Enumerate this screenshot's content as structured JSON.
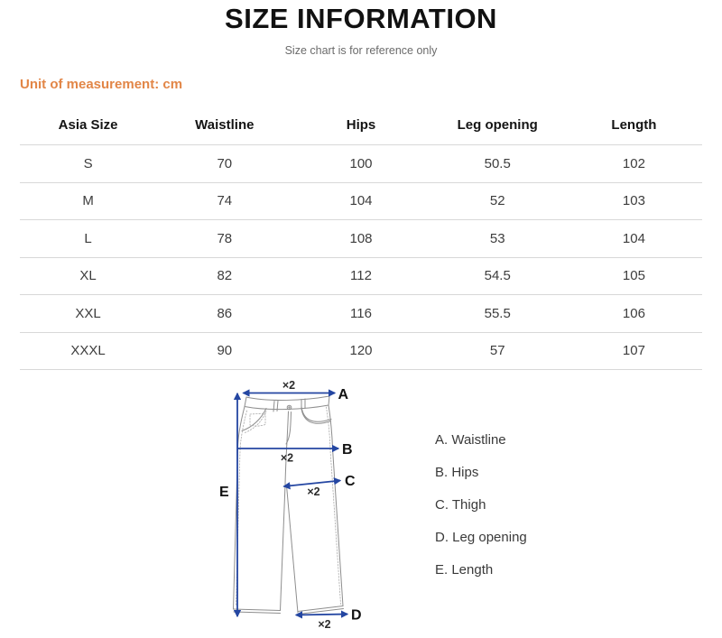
{
  "header": {
    "title": "SIZE INFORMATION",
    "subtitle": "Size chart is for reference only",
    "unit_note": "Unit of measurement: cm"
  },
  "size_table": {
    "columns": [
      "Asia Size",
      "Waistline",
      "Hips",
      "Leg opening",
      "Length"
    ],
    "rows": [
      [
        "S",
        "70",
        "100",
        "50.5",
        "102"
      ],
      [
        "M",
        "74",
        "104",
        "52",
        "103"
      ],
      [
        "L",
        "78",
        "108",
        "53",
        "104"
      ],
      [
        "XL",
        "82",
        "112",
        "54.5",
        "105"
      ],
      [
        "XXL",
        "86",
        "116",
        "55.5",
        "106"
      ],
      [
        "XXXL",
        "90",
        "120",
        "57",
        "107"
      ]
    ]
  },
  "diagram": {
    "labels": {
      "A": "A",
      "B": "B",
      "C": "C",
      "D": "D",
      "E": "E"
    },
    "multiplier": "×2",
    "legend": [
      "A. Waistline",
      "B. Hips",
      "C. Thigh",
      "D. Leg opening",
      "E. Length"
    ]
  },
  "colors": {
    "accent_orange": "#E28647",
    "measure_blue": "#2446A2",
    "outline_gray": "#8E8E8E"
  }
}
